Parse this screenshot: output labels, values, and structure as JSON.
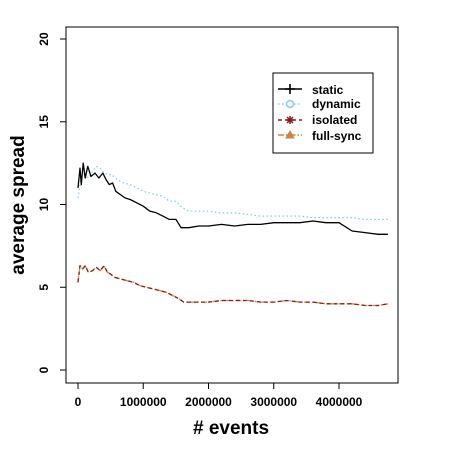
{
  "chart_data": {
    "type": "line",
    "title": "",
    "xlabel": "# events",
    "ylabel": "average spread",
    "xlim": [
      0,
      4800000
    ],
    "ylim": [
      0,
      20
    ],
    "x_ticks": [
      0,
      1000000,
      2000000,
      3000000,
      4000000
    ],
    "x_tick_labels": [
      "0",
      "1000000",
      "2000000",
      "3000000",
      "4000000"
    ],
    "y_ticks": [
      0,
      5,
      10,
      15,
      20
    ],
    "y_tick_labels": [
      "0",
      "5",
      "10",
      "15",
      "20"
    ],
    "grid": false,
    "legend_position": "top-right",
    "series": [
      {
        "name": "static",
        "color": "#000000",
        "dash": "solid",
        "marker": "plus",
        "points": [
          [
            0,
            11.0
          ],
          [
            30000,
            12.2
          ],
          [
            50000,
            11.2
          ],
          [
            80000,
            12.5
          ],
          [
            110000,
            11.6
          ],
          [
            150000,
            12.3
          ],
          [
            200000,
            11.7
          ],
          [
            260000,
            11.9
          ],
          [
            320000,
            11.6
          ],
          [
            380000,
            11.9
          ],
          [
            430000,
            11.5
          ],
          [
            480000,
            11.2
          ],
          [
            530000,
            11.3
          ],
          [
            580000,
            10.8
          ],
          [
            650000,
            10.6
          ],
          [
            720000,
            10.4
          ],
          [
            800000,
            10.3
          ],
          [
            900000,
            10.1
          ],
          [
            1000000,
            9.9
          ],
          [
            1100000,
            9.6
          ],
          [
            1200000,
            9.5
          ],
          [
            1300000,
            9.3
          ],
          [
            1400000,
            9.1
          ],
          [
            1500000,
            9.1
          ],
          [
            1580000,
            8.6
          ],
          [
            1700000,
            8.6
          ],
          [
            1850000,
            8.7
          ],
          [
            2000000,
            8.7
          ],
          [
            2200000,
            8.8
          ],
          [
            2400000,
            8.7
          ],
          [
            2600000,
            8.8
          ],
          [
            2800000,
            8.8
          ],
          [
            3000000,
            8.9
          ],
          [
            3200000,
            8.9
          ],
          [
            3400000,
            8.9
          ],
          [
            3600000,
            9.0
          ],
          [
            3800000,
            8.9
          ],
          [
            4000000,
            8.9
          ],
          [
            4200000,
            8.4
          ],
          [
            4400000,
            8.3
          ],
          [
            4600000,
            8.2
          ],
          [
            4750000,
            8.2
          ]
        ]
      },
      {
        "name": "dynamic",
        "color": "#87CEEB",
        "dash": "dotted",
        "marker": "circle",
        "points": [
          [
            0,
            10.4
          ],
          [
            50000,
            11.6
          ],
          [
            100000,
            11.8
          ],
          [
            160000,
            11.6
          ],
          [
            220000,
            12.0
          ],
          [
            280000,
            12.3
          ],
          [
            340000,
            12.2
          ],
          [
            400000,
            11.9
          ],
          [
            460000,
            11.8
          ],
          [
            520000,
            11.8
          ],
          [
            600000,
            11.5
          ],
          [
            700000,
            11.3
          ],
          [
            800000,
            11.2
          ],
          [
            900000,
            11.0
          ],
          [
            1000000,
            10.8
          ],
          [
            1100000,
            10.7
          ],
          [
            1200000,
            10.6
          ],
          [
            1300000,
            10.5
          ],
          [
            1400000,
            10.2
          ],
          [
            1500000,
            10.2
          ],
          [
            1600000,
            9.8
          ],
          [
            1700000,
            9.6
          ],
          [
            1850000,
            9.6
          ],
          [
            2000000,
            9.6
          ],
          [
            2200000,
            9.5
          ],
          [
            2400000,
            9.5
          ],
          [
            2600000,
            9.4
          ],
          [
            2800000,
            9.3
          ],
          [
            3000000,
            9.3
          ],
          [
            3200000,
            9.3
          ],
          [
            3400000,
            9.3
          ],
          [
            3600000,
            9.2
          ],
          [
            3800000,
            9.2
          ],
          [
            4000000,
            9.2
          ],
          [
            4200000,
            9.2
          ],
          [
            4400000,
            9.1
          ],
          [
            4600000,
            9.1
          ],
          [
            4750000,
            9.1
          ]
        ]
      },
      {
        "name": "isolated",
        "color": "#8B1A1A",
        "dash": "dashed",
        "marker": "asterisk",
        "points": [
          [
            0,
            5.3
          ],
          [
            30000,
            6.3
          ],
          [
            70000,
            6.1
          ],
          [
            110000,
            6.3
          ],
          [
            160000,
            5.9
          ],
          [
            220000,
            6.0
          ],
          [
            280000,
            6.2
          ],
          [
            340000,
            6.0
          ],
          [
            400000,
            6.3
          ],
          [
            450000,
            5.9
          ],
          [
            500000,
            5.8
          ],
          [
            560000,
            5.6
          ],
          [
            650000,
            5.5
          ],
          [
            750000,
            5.4
          ],
          [
            850000,
            5.3
          ],
          [
            950000,
            5.1
          ],
          [
            1050000,
            5.0
          ],
          [
            1150000,
            4.9
          ],
          [
            1250000,
            4.8
          ],
          [
            1350000,
            4.7
          ],
          [
            1450000,
            4.5
          ],
          [
            1550000,
            4.3
          ],
          [
            1620000,
            4.1
          ],
          [
            1800000,
            4.1
          ],
          [
            2000000,
            4.1
          ],
          [
            2200000,
            4.2
          ],
          [
            2400000,
            4.2
          ],
          [
            2600000,
            4.2
          ],
          [
            2800000,
            4.1
          ],
          [
            3000000,
            4.1
          ],
          [
            3200000,
            4.2
          ],
          [
            3400000,
            4.1
          ],
          [
            3600000,
            4.1
          ],
          [
            3800000,
            4.0
          ],
          [
            4000000,
            4.0
          ],
          [
            4200000,
            4.0
          ],
          [
            4400000,
            3.9
          ],
          [
            4600000,
            3.9
          ],
          [
            4750000,
            4.0
          ]
        ]
      },
      {
        "name": "full-sync",
        "color": "#CD853F",
        "dash": "dashdot",
        "marker": "triangle",
        "points": [
          [
            0,
            5.3
          ],
          [
            30000,
            6.3
          ],
          [
            70000,
            6.1
          ],
          [
            110000,
            6.3
          ],
          [
            160000,
            5.9
          ],
          [
            220000,
            6.0
          ],
          [
            280000,
            6.2
          ],
          [
            340000,
            6.0
          ],
          [
            400000,
            6.3
          ],
          [
            450000,
            5.9
          ],
          [
            500000,
            5.8
          ],
          [
            560000,
            5.6
          ],
          [
            650000,
            5.5
          ],
          [
            750000,
            5.4
          ],
          [
            850000,
            5.3
          ],
          [
            950000,
            5.1
          ],
          [
            1050000,
            5.0
          ],
          [
            1150000,
            4.9
          ],
          [
            1250000,
            4.8
          ],
          [
            1350000,
            4.7
          ],
          [
            1450000,
            4.5
          ],
          [
            1550000,
            4.3
          ],
          [
            1620000,
            4.1
          ],
          [
            1800000,
            4.1
          ],
          [
            2000000,
            4.1
          ],
          [
            2200000,
            4.2
          ],
          [
            2400000,
            4.2
          ],
          [
            2600000,
            4.2
          ],
          [
            2800000,
            4.1
          ],
          [
            3000000,
            4.1
          ],
          [
            3200000,
            4.2
          ],
          [
            3400000,
            4.1
          ],
          [
            3600000,
            4.1
          ],
          [
            3800000,
            4.0
          ],
          [
            4000000,
            4.0
          ],
          [
            4200000,
            4.0
          ],
          [
            4400000,
            3.9
          ],
          [
            4600000,
            3.9
          ],
          [
            4750000,
            4.0
          ]
        ]
      }
    ]
  }
}
